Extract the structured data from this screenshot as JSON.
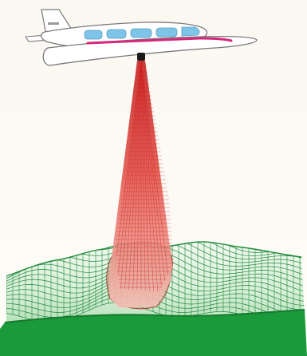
{
  "aircraft": {
    "tail_lettering": "",
    "colors": {
      "body": "#ffffff",
      "outline": "#7a7a7a",
      "windows": "#7ec4e8",
      "stripe": "#d4287a"
    }
  },
  "beam": {
    "colors": {
      "top": "#c01818",
      "mid": "#e04040",
      "bottom": "#f6c2b8",
      "grid": "#d02020"
    }
  },
  "terrain": {
    "colors": {
      "mesh": "#1e8a3a",
      "fill_light": "#e2f2e2",
      "base": "#1b9a3c",
      "footprint": "#c9a090",
      "footprint_grid": "#a04030"
    }
  },
  "background": {
    "top": "#fbf8f2",
    "bottom": "#fefcf8"
  }
}
